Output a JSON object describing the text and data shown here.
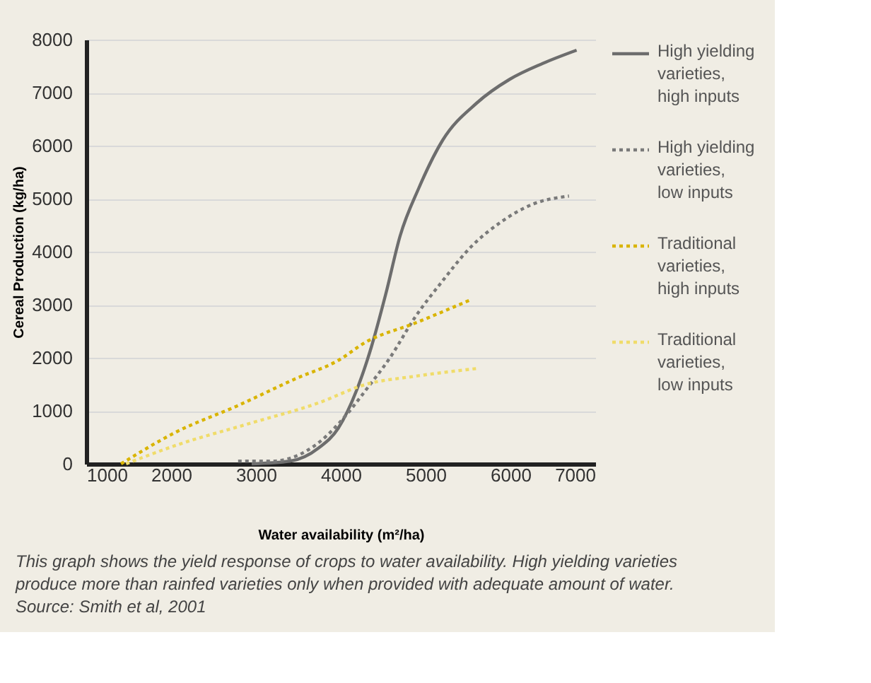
{
  "chart_data": {
    "type": "line",
    "xlabel": "Water availability (m²/ha)",
    "ylabel": "Cereal Production (kg/ha)",
    "xlim": [
      1000,
      7000
    ],
    "xticks": [
      1000,
      2000,
      3000,
      4000,
      5000,
      6000,
      7000
    ],
    "ylim": [
      0,
      8000
    ],
    "yticks": [
      0,
      1000,
      2000,
      3000,
      4000,
      5000,
      6000,
      7000,
      8000
    ],
    "grid": "y",
    "legend": "right",
    "series": [
      {
        "name": "High yielding varieties, high inputs",
        "color": "#6d6d6d",
        "line_style": "solid",
        "x": [
          2950,
          3400,
          3740,
          3970,
          4190,
          4360,
          4530,
          4700,
          4920,
          5200,
          5600,
          5990,
          6380,
          6780
        ],
        "values": [
          0,
          50,
          300,
          670,
          1400,
          2200,
          3200,
          4300,
          5200,
          6100,
          6800,
          7250,
          7550,
          7800
        ]
      },
      {
        "name": "High yielding varieties, low inputs",
        "color": "#7a7a7a",
        "line_style": "dotted",
        "x": [
          2790,
          3180,
          3740,
          4080,
          4300,
          4580,
          4870,
          5200,
          5540,
          5880,
          6270,
          6690
        ],
        "values": [
          50,
          50,
          400,
          950,
          1400,
          2000,
          2750,
          3450,
          4100,
          4550,
          4900,
          5050
        ]
      },
      {
        "name": "Traditional varieties, high inputs",
        "color": "#d9b400",
        "line_style": "dotted",
        "x": [
          1410,
          2060,
          2790,
          3460,
          3970,
          4300,
          4870,
          5540
        ],
        "values": [
          0,
          600,
          1100,
          1600,
          1950,
          2300,
          2650,
          3100
        ]
      },
      {
        "name": "Traditional varieties, low inputs",
        "color": "#f0dc6a",
        "line_style": "dotted",
        "x": [
          1470,
          2060,
          2900,
          3740,
          4300,
          4870,
          5620
        ],
        "values": [
          0,
          350,
          750,
          1150,
          1500,
          1650,
          1800
        ]
      }
    ],
    "annotations": [
      "This graph shows the yield response of crops to water availability. High yielding varieties produce more than rainfed varieties only when provided with adequate amount of water.",
      "Source: Smith et al, 2001"
    ]
  }
}
